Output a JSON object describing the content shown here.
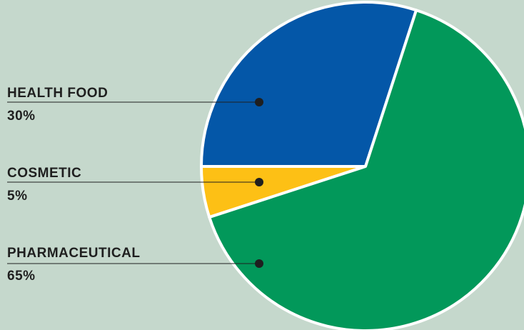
{
  "chart_data": {
    "type": "pie",
    "categories": [
      "HEALTH FOOD",
      "COSMETIC",
      "PHARMACEUTICAL"
    ],
    "values": [
      30,
      5,
      65
    ],
    "value_labels": [
      "30%",
      "5%",
      "65%"
    ],
    "colors": [
      "#0457a8",
      "#fdc015",
      "#02985a"
    ],
    "title": "",
    "legend": "left, callout labels with leader lines"
  },
  "colors": {
    "background": "#c5d8cc",
    "separator": "#ffffff",
    "text": "#1f1f1f",
    "marker": "#1f1f1f"
  }
}
